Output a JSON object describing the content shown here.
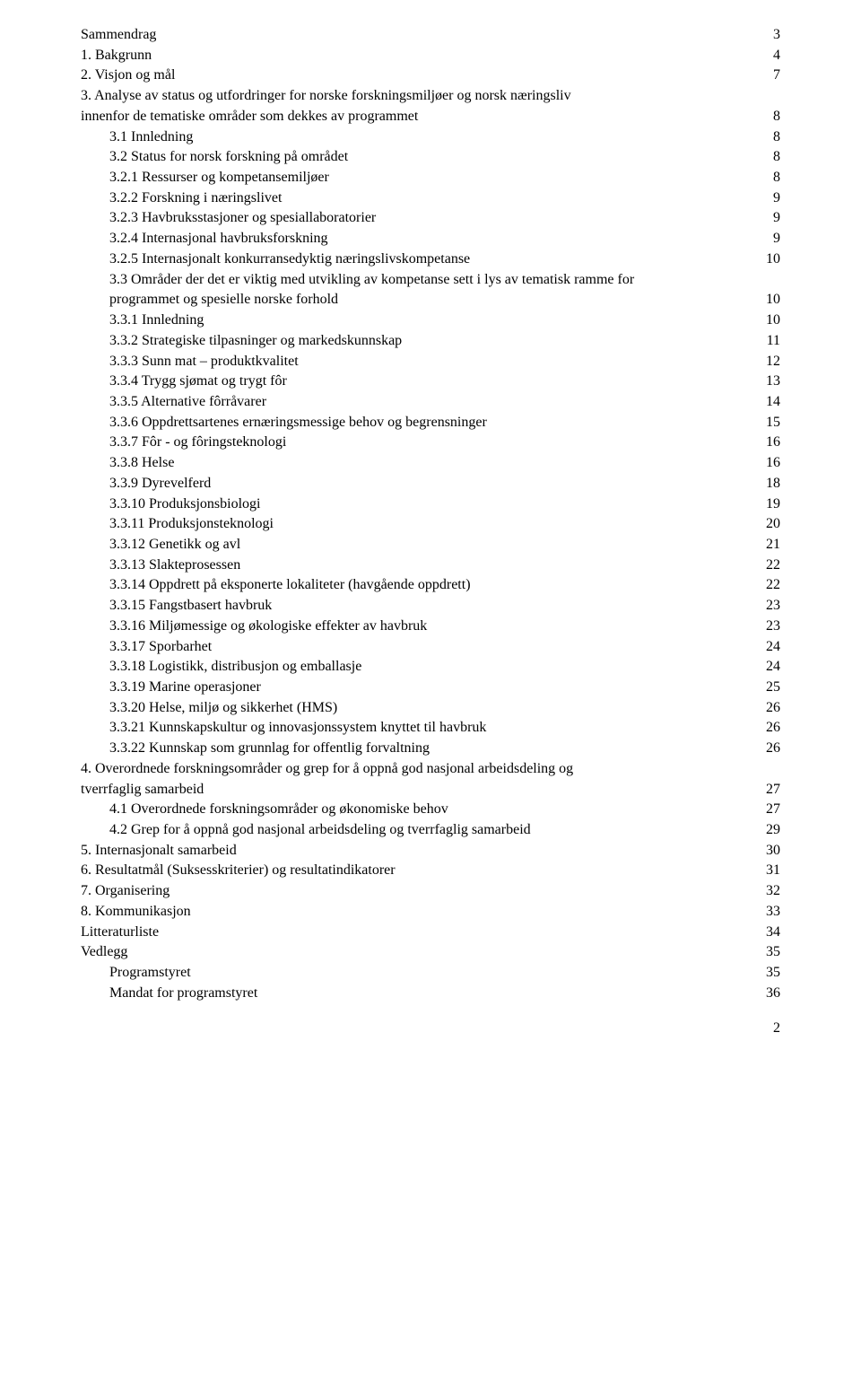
{
  "toc": {
    "entries": [
      {
        "label": "Sammendrag",
        "page": "3",
        "indent": 0
      },
      {
        "label": "1. Bakgrunn",
        "page": "4",
        "indent": 0
      },
      {
        "label": "2. Visjon og mål",
        "page": "7",
        "indent": 0
      },
      {
        "label": "3. Analyse av status og utfordringer for norske forskningsmiljøer og norsk næringsliv",
        "page": "",
        "indent": 0,
        "nowrapOff": true
      },
      {
        "label": "innenfor de tematiske områder som dekkes av programmet",
        "page": "8",
        "indent": 0
      },
      {
        "label": "3.1 Innledning",
        "page": "8",
        "indent": 1
      },
      {
        "label": "3.2 Status for norsk forskning på området",
        "page": "8",
        "indent": 1
      },
      {
        "label": "3.2.1 Ressurser og kompetansemiljøer",
        "page": "8",
        "indent": 2
      },
      {
        "label": "3.2.2 Forskning i næringslivet",
        "page": "9",
        "indent": 2
      },
      {
        "label": "3.2.3 Havbruksstasjoner og spesiallaboratorier",
        "page": "9",
        "indent": 2
      },
      {
        "label": "3.2.4 Internasjonal havbruksforskning",
        "page": "9",
        "indent": 2
      },
      {
        "label": "3.2.5 Internasjonalt konkurransedyktig næringslivskompetanse",
        "page": "10",
        "indent": 2
      },
      {
        "label": "3.3 Områder der det er viktig med utvikling av kompetanse sett i lys av tematisk ramme for",
        "page": "",
        "indent": 1,
        "nowrapOff": true
      },
      {
        "label": "programmet og spesielle norske forhold",
        "page": "10",
        "indent": 1
      },
      {
        "label": "3.3.1 Innledning",
        "page": "10",
        "indent": 2
      },
      {
        "label": "3.3.2 Strategiske tilpasninger og markedskunnskap",
        "page": "11",
        "indent": 2
      },
      {
        "label": "3.3.3 Sunn mat – produktkvalitet",
        "page": "12",
        "indent": 2
      },
      {
        "label": "3.3.4 Trygg sjømat og trygt fôr",
        "page": "13",
        "indent": 2
      },
      {
        "label": "3.3.5 Alternative fôrråvarer",
        "page": "14",
        "indent": 2
      },
      {
        "label": "3.3.6 Oppdrettsartenes ernæringsmessige behov og begrensninger",
        "page": "15",
        "indent": 2
      },
      {
        "label": "3.3.7 Fôr - og fôringsteknologi",
        "page": "16",
        "indent": 2
      },
      {
        "label": "3.3.8 Helse",
        "page": "16",
        "indent": 2
      },
      {
        "label": "3.3.9 Dyrevelferd",
        "page": "18",
        "indent": 2
      },
      {
        "label": "3.3.10 Produksjonsbiologi",
        "page": "19",
        "indent": 2
      },
      {
        "label": "3.3.11 Produksjonsteknologi",
        "page": "20",
        "indent": 2
      },
      {
        "label": "3.3.12 Genetikk og avl",
        "page": "21",
        "indent": 2
      },
      {
        "label": "3.3.13 Slakteprosessen",
        "page": "22",
        "indent": 2
      },
      {
        "label": "3.3.14 Oppdrett på eksponerte lokaliteter (havgående oppdrett)",
        "page": "22",
        "indent": 2
      },
      {
        "label": "3.3.15 Fangstbasert havbruk",
        "page": "23",
        "indent": 2
      },
      {
        "label": "3.3.16 Miljømessige og økologiske effekter av havbruk",
        "page": "23",
        "indent": 2
      },
      {
        "label": "3.3.17 Sporbarhet",
        "page": "24",
        "indent": 2
      },
      {
        "label": "3.3.18 Logistikk, distribusjon og emballasje",
        "page": "24",
        "indent": 2
      },
      {
        "label": "3.3.19 Marine operasjoner",
        "page": "25",
        "indent": 2
      },
      {
        "label": "3.3.20 Helse, miljø og sikkerhet (HMS)",
        "page": "26",
        "indent": 2
      },
      {
        "label": "3.3.21 Kunnskapskultur og innovasjonssystem knyttet til havbruk",
        "page": "26",
        "indent": 2
      },
      {
        "label": "3.3.22 Kunnskap som grunnlag for offentlig forvaltning",
        "page": "26",
        "indent": 2
      },
      {
        "label": "4. Overordnede forskningsområder og grep for å oppnå god nasjonal arbeidsdeling og",
        "page": "",
        "indent": 0,
        "nowrapOff": true
      },
      {
        "label": "tverrfaglig samarbeid",
        "page": "27",
        "indent": 0
      },
      {
        "label": "4.1 Overordnede forskningsområder og økonomiske behov",
        "page": "27",
        "indent": 1
      },
      {
        "label": "4.2 Grep for å oppnå god nasjonal arbeidsdeling og tverrfaglig samarbeid",
        "page": "29",
        "indent": 1
      },
      {
        "label": "5. Internasjonalt samarbeid",
        "page": "30",
        "indent": 0
      },
      {
        "label": "6. Resultatmål (Suksesskriterier) og resultatindikatorer",
        "page": "31",
        "indent": 0
      },
      {
        "label": "7. Organisering",
        "page": "32",
        "indent": 0
      },
      {
        "label": "8. Kommunikasjon",
        "page": "33",
        "indent": 0
      },
      {
        "label": "Litteraturliste",
        "page": "34",
        "indent": 0
      },
      {
        "label": "Vedlegg",
        "page": "35",
        "indent": 0
      },
      {
        "label": "Programstyret",
        "page": "35",
        "indent": 1
      },
      {
        "label": "Mandat for programstyret",
        "page": "36",
        "indent": 1
      }
    ]
  },
  "footer": {
    "page_number": "2"
  }
}
